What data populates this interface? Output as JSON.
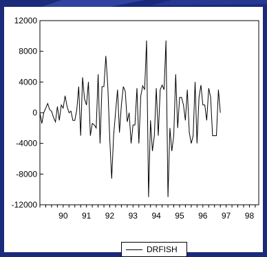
{
  "colors": {
    "background": "#1b2a7a",
    "panel": "#ffffff",
    "line": "#000000"
  },
  "chart_data": {
    "type": "line",
    "title": "",
    "xlabel": "",
    "ylabel": "",
    "ylim": [
      -12000,
      12000
    ],
    "yticks": [
      -12000,
      -8000,
      -4000,
      0,
      4000,
      8000,
      12000
    ],
    "ytick_labels": [
      "-12000",
      "-8000",
      "-4000",
      "0",
      "4000",
      "8000",
      "12000"
    ],
    "xlim": [
      1989.5,
      1998.9
    ],
    "xtick_labels": [
      "90",
      "91",
      "92",
      "93",
      "94",
      "95",
      "96",
      "97",
      "98"
    ],
    "xtick_positions": [
      1990,
      1991,
      1992,
      1993,
      1994,
      1995,
      1996,
      1997,
      1998
    ],
    "legend_position": "bottom",
    "grid": false,
    "series": [
      {
        "name": "DRFISH",
        "x_start": 1989.5,
        "x_step": 0.08333,
        "values": [
          0,
          -1400,
          0,
          600,
          1200,
          400,
          200,
          -600,
          -1200,
          800,
          -1000,
          1000,
          600,
          2200,
          800,
          0,
          200,
          -1000,
          -1000,
          400,
          3400,
          -3000,
          4600,
          1800,
          1000,
          4000,
          -3000,
          -1400,
          -1600,
          -2000,
          5000,
          -4000,
          3400,
          3400,
          7400,
          3400,
          -3400,
          -8600,
          -3000,
          0,
          3000,
          -2600,
          1000,
          3400,
          2800,
          -1200,
          0,
          -4000,
          -1600,
          -1600,
          3200,
          -4000,
          2200,
          3500,
          3000,
          9400,
          -11000,
          -1000,
          -5000,
          -3000,
          3200,
          -3000,
          3000,
          3600,
          3000,
          9400,
          -11000,
          -2000,
          -5000,
          -3000,
          5000,
          -2000,
          2000,
          2000,
          1000,
          -1000,
          3000,
          -2600,
          -4000,
          -3000,
          4000,
          -4000,
          2000,
          3600,
          1000,
          1000,
          -1000,
          3200,
          2000,
          -3000,
          -3000,
          -3000,
          3000,
          0
        ]
      }
    ]
  }
}
